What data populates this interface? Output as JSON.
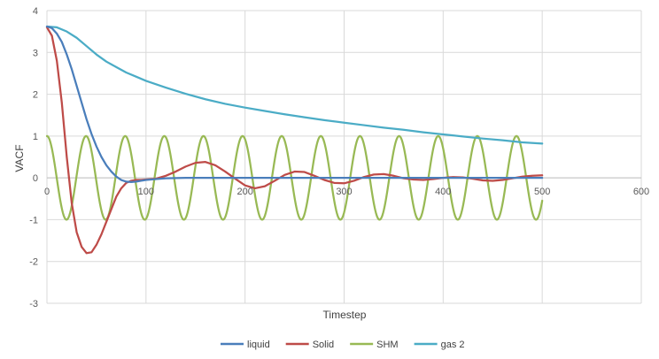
{
  "chart_data": {
    "type": "line",
    "title": "",
    "xlabel": "Timestep",
    "ylabel": "VACF",
    "xlim": [
      0,
      600
    ],
    "ylim": [
      -3,
      4
    ],
    "xticks": [
      0,
      100,
      200,
      300,
      400,
      500,
      600
    ],
    "yticks": [
      -3,
      -2,
      -1,
      0,
      1,
      2,
      3,
      4
    ],
    "grid": true,
    "legend_position": "bottom",
    "series": [
      {
        "name": "liquid",
        "color": "#4a7ebb",
        "x": [
          0,
          5,
          10,
          15,
          20,
          25,
          30,
          35,
          40,
          45,
          50,
          55,
          60,
          65,
          70,
          75,
          80,
          85,
          90,
          95,
          100,
          110,
          120,
          140,
          160,
          200,
          250,
          300,
          350,
          400,
          450,
          500
        ],
        "y": [
          3.62,
          3.58,
          3.45,
          3.25,
          2.95,
          2.6,
          2.2,
          1.8,
          1.4,
          1.05,
          0.75,
          0.5,
          0.3,
          0.15,
          0.03,
          -0.05,
          -0.09,
          -0.1,
          -0.09,
          -0.07,
          -0.05,
          -0.03,
          -0.01,
          0.0,
          0.0,
          0.0,
          0.0,
          0.0,
          0.0,
          0.0,
          0.0,
          0.0
        ]
      },
      {
        "name": "Solid",
        "color": "#be4b48",
        "x": [
          0,
          5,
          10,
          15,
          20,
          25,
          30,
          35,
          40,
          45,
          50,
          55,
          60,
          65,
          70,
          75,
          80,
          85,
          90,
          95,
          100,
          110,
          120,
          130,
          140,
          150,
          160,
          170,
          180,
          190,
          200,
          210,
          220,
          230,
          240,
          250,
          260,
          270,
          280,
          290,
          300,
          310,
          320,
          330,
          340,
          350,
          360,
          370,
          380,
          390,
          400,
          410,
          420,
          430,
          440,
          450,
          460,
          470,
          480,
          490,
          500
        ],
        "y": [
          3.6,
          3.4,
          2.8,
          1.8,
          0.5,
          -0.6,
          -1.3,
          -1.65,
          -1.8,
          -1.78,
          -1.6,
          -1.35,
          -1.05,
          -0.75,
          -0.45,
          -0.25,
          -0.12,
          -0.07,
          -0.05,
          -0.05,
          -0.04,
          -0.02,
          0.05,
          0.15,
          0.27,
          0.36,
          0.38,
          0.3,
          0.15,
          -0.02,
          -0.18,
          -0.25,
          -0.2,
          -0.07,
          0.07,
          0.15,
          0.14,
          0.05,
          -0.05,
          -0.12,
          -0.13,
          -0.07,
          0.02,
          0.08,
          0.09,
          0.05,
          -0.01,
          -0.04,
          -0.05,
          -0.03,
          0.0,
          0.02,
          0.01,
          -0.02,
          -0.06,
          -0.07,
          -0.05,
          -0.01,
          0.03,
          0.05,
          0.06
        ]
      },
      {
        "name": "SHM",
        "color": "#98b954",
        "period": 39.5,
        "amplitude": 1,
        "x_range": [
          0,
          500
        ],
        "formula": "cos"
      },
      {
        "name": "gas 2",
        "color": "#4bacc6",
        "x": [
          0,
          10,
          20,
          30,
          40,
          50,
          60,
          70,
          80,
          90,
          100,
          120,
          140,
          160,
          180,
          200,
          220,
          240,
          260,
          280,
          300,
          320,
          340,
          360,
          380,
          400,
          420,
          440,
          460,
          480,
          500
        ],
        "y": [
          3.62,
          3.6,
          3.5,
          3.35,
          3.15,
          2.95,
          2.78,
          2.65,
          2.52,
          2.42,
          2.32,
          2.16,
          2.01,
          1.88,
          1.77,
          1.68,
          1.6,
          1.52,
          1.45,
          1.38,
          1.32,
          1.26,
          1.2,
          1.15,
          1.09,
          1.04,
          0.99,
          0.94,
          0.9,
          0.85,
          0.82
        ]
      }
    ]
  }
}
